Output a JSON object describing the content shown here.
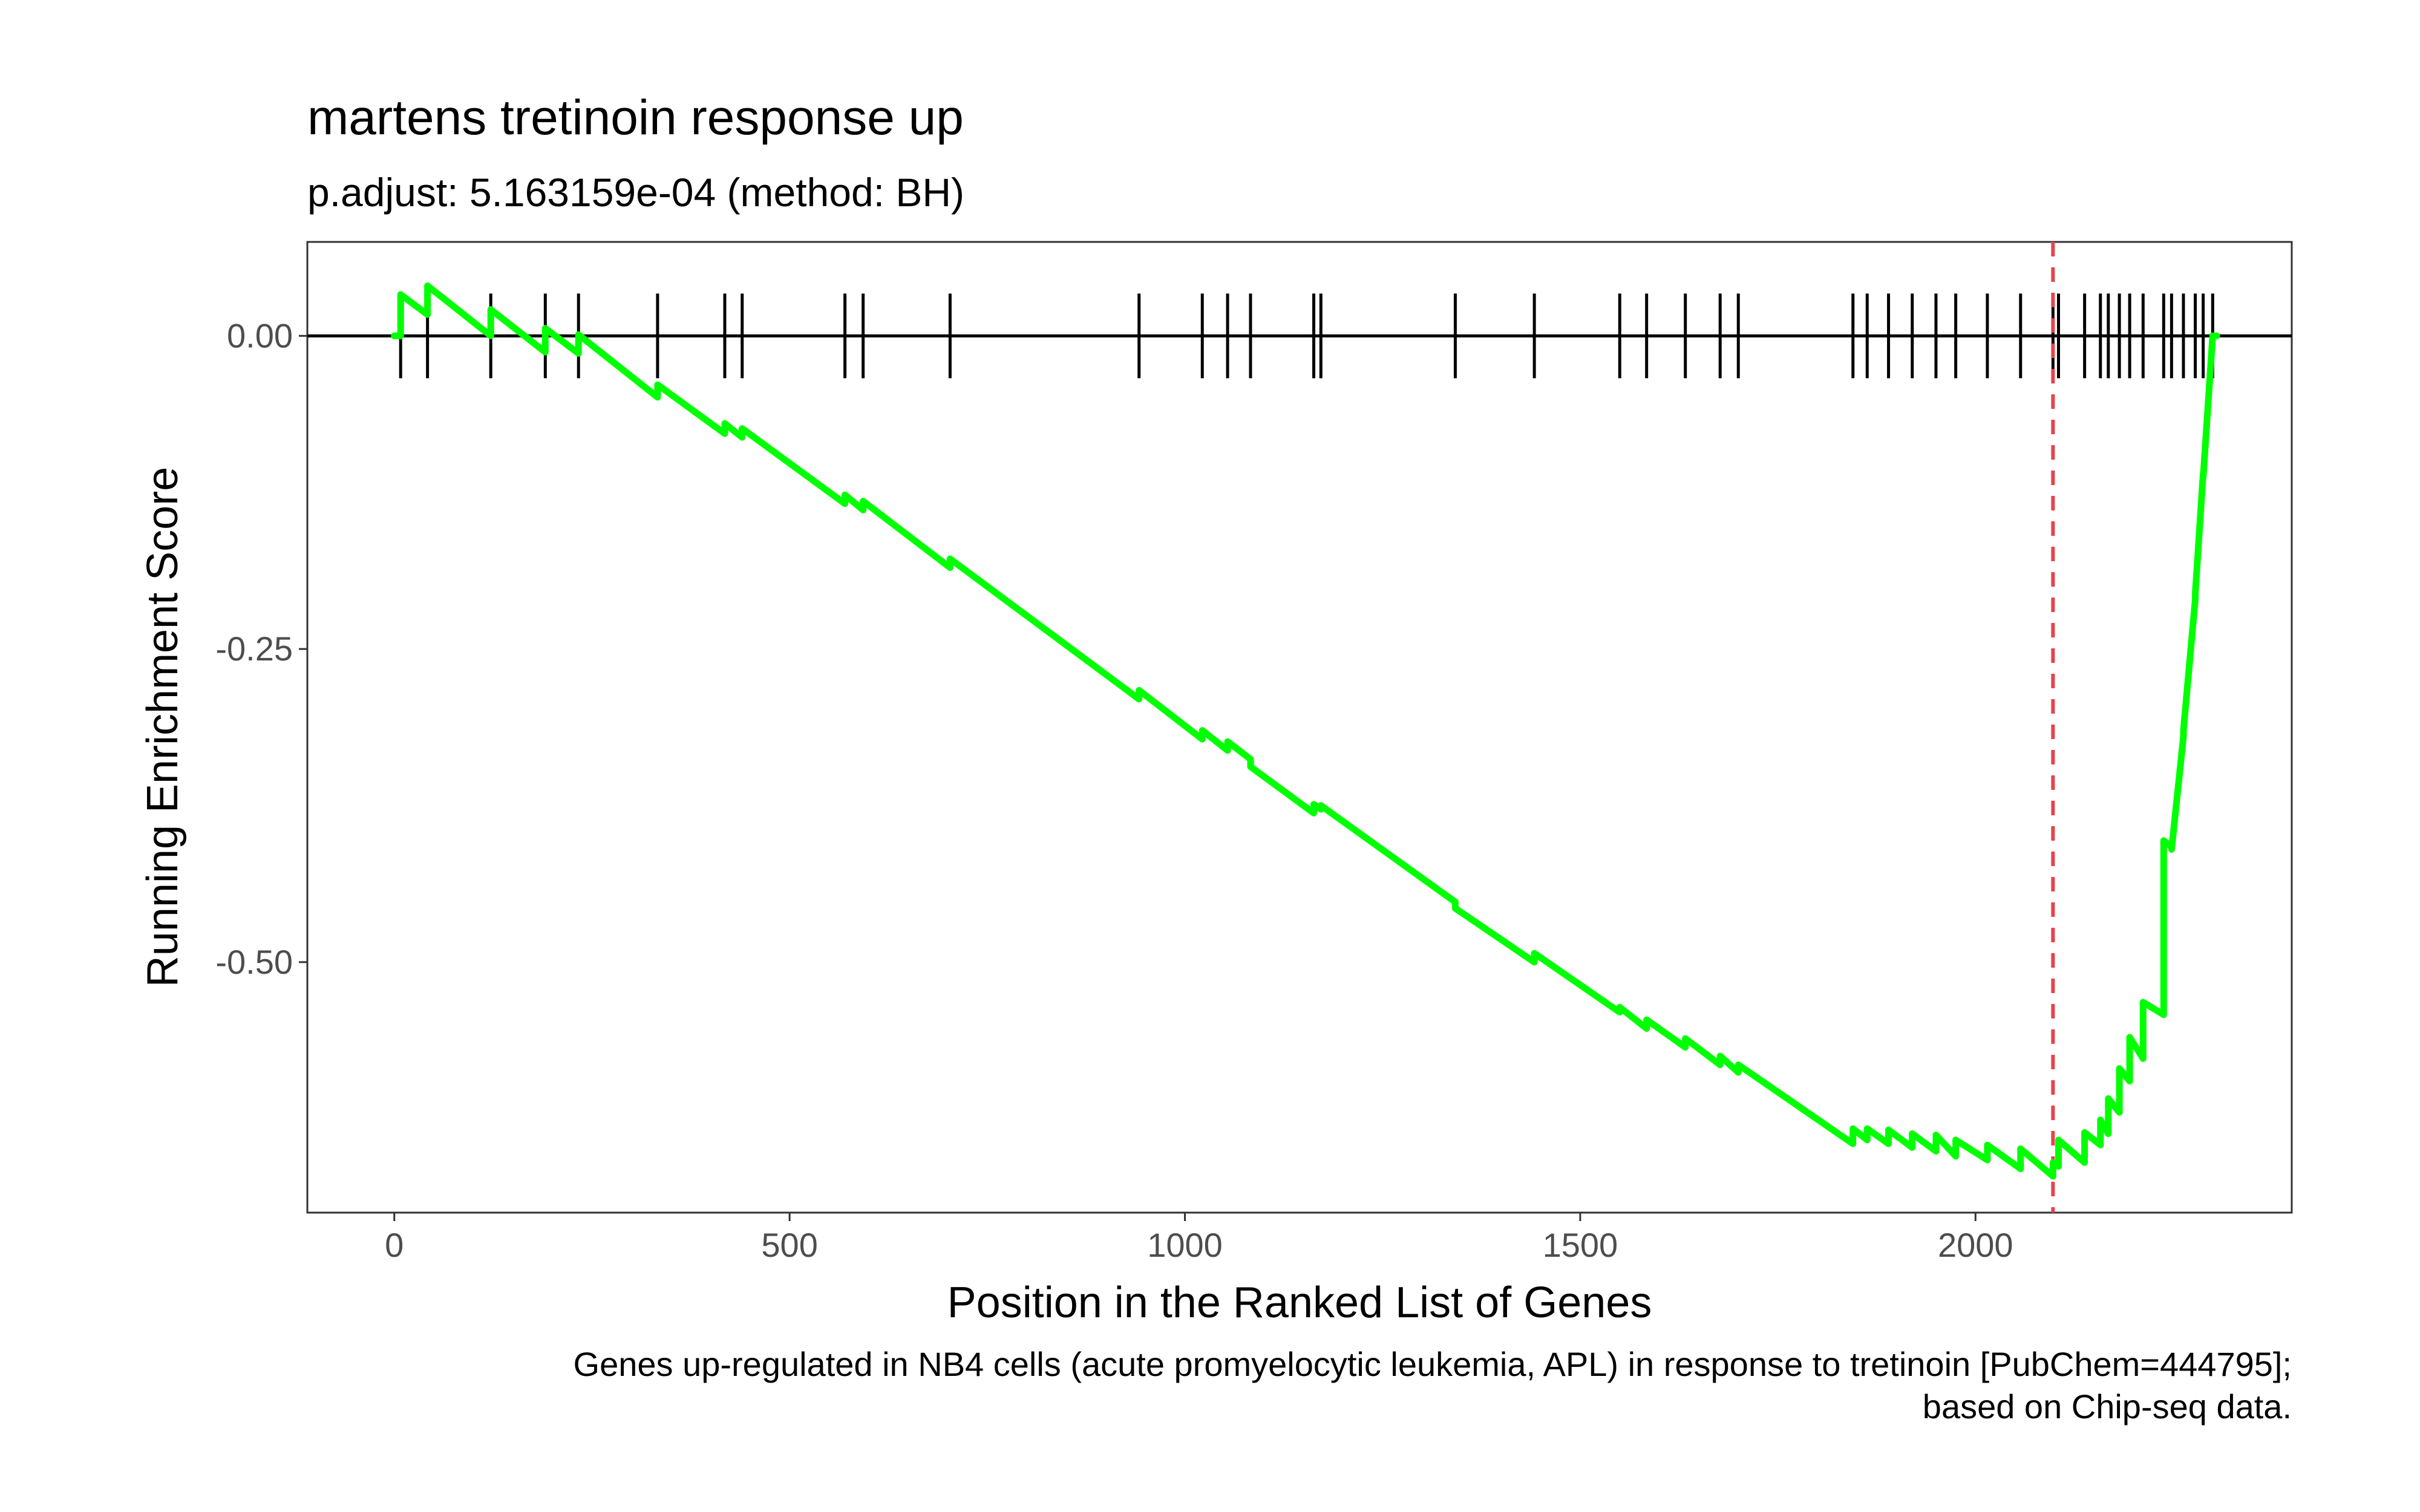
{
  "chart_data": {
    "type": "line",
    "title": "martens tretinoin response up",
    "subtitle": "p.adjust: 5.163159e-04 (method: BH)",
    "xlabel": "Position in the Ranked List of Genes",
    "ylabel": "Running Enrichment Score",
    "caption_lines": [
      "Genes up-regulated in NB4 cells (acute promyelocytic leukemia, APL) in response to tretinoin [PubChem=444795];",
      "based on Chip-seq data."
    ],
    "xlim": [
      -110,
      2400
    ],
    "ylim": [
      -0.7,
      0.075
    ],
    "x_ticks": [
      0,
      500,
      1000,
      1500,
      2000
    ],
    "x_tick_labels": [
      "0",
      "500",
      "1000",
      "1500",
      "2000"
    ],
    "y_ticks": [
      0,
      -0.25,
      -0.5
    ],
    "y_tick_labels": [
      "0.00",
      "-0.25",
      "-0.50"
    ],
    "gene_hits": [
      8,
      42,
      122,
      191,
      233,
      333,
      418,
      440,
      570,
      593,
      703,
      942,
      1022,
      1054,
      1083,
      1163,
      1172,
      1342,
      1442,
      1550,
      1584,
      1633,
      1677,
      1700,
      1845,
      1863,
      1890,
      1920,
      1950,
      1975,
      2015,
      2057,
      2098,
      2105,
      2138,
      2158,
      2168,
      2182,
      2195,
      2212,
      2238,
      2248,
      2263,
      2278,
      2288,
      2300
    ],
    "score_increment": 0.022,
    "final_x": 2305,
    "series": [
      {
        "points": [
          [
            0,
            0
          ],
          [
            8,
            0
          ],
          [
            8,
            0.033
          ],
          [
            42,
            0.017
          ],
          [
            42,
            0.04
          ],
          [
            122,
            0.0
          ],
          [
            122,
            0.021
          ],
          [
            191,
            -0.013
          ],
          [
            191,
            0.006
          ],
          [
            233,
            -0.014
          ],
          [
            233,
            0.001
          ],
          [
            333,
            -0.049
          ],
          [
            333,
            -0.039
          ],
          [
            418,
            -0.078
          ],
          [
            418,
            -0.07
          ],
          [
            440,
            -0.081
          ],
          [
            440,
            -0.074
          ],
          [
            570,
            -0.134
          ],
          [
            570,
            -0.127
          ],
          [
            593,
            -0.139
          ],
          [
            593,
            -0.132
          ],
          [
            703,
            -0.185
          ],
          [
            703,
            -0.178
          ],
          [
            942,
            -0.29
          ],
          [
            942,
            -0.283
          ],
          [
            1022,
            -0.322
          ],
          [
            1022,
            -0.315
          ],
          [
            1054,
            -0.331
          ],
          [
            1054,
            -0.324
          ],
          [
            1083,
            -0.338
          ],
          [
            1083,
            -0.344
          ],
          [
            1163,
            -0.381
          ],
          [
            1163,
            -0.374
          ],
          [
            1172,
            -0.378
          ],
          [
            1172,
            -0.375
          ],
          [
            1342,
            -0.452
          ],
          [
            1342,
            -0.457
          ],
          [
            1442,
            -0.5
          ],
          [
            1442,
            -0.493
          ],
          [
            1550,
            -0.54
          ],
          [
            1550,
            -0.536
          ],
          [
            1584,
            -0.553
          ],
          [
            1584,
            -0.546
          ],
          [
            1633,
            -0.568
          ],
          [
            1633,
            -0.561
          ],
          [
            1677,
            -0.582
          ],
          [
            1677,
            -0.575
          ],
          [
            1700,
            -0.588
          ],
          [
            1700,
            -0.582
          ],
          [
            1845,
            -0.645
          ],
          [
            1845,
            -0.633
          ],
          [
            1863,
            -0.642
          ],
          [
            1863,
            -0.633
          ],
          [
            1890,
            -0.645
          ],
          [
            1890,
            -0.634
          ],
          [
            1920,
            -0.648
          ],
          [
            1920,
            -0.637
          ],
          [
            1950,
            -0.651
          ],
          [
            1950,
            -0.638
          ],
          [
            1975,
            -0.655
          ],
          [
            1975,
            -0.642
          ],
          [
            2015,
            -0.658
          ],
          [
            2015,
            -0.646
          ],
          [
            2057,
            -0.665
          ],
          [
            2057,
            -0.649
          ],
          [
            2098,
            -0.671
          ],
          [
            2098,
            -0.66
          ],
          [
            2105,
            -0.663
          ],
          [
            2105,
            -0.642
          ],
          [
            2138,
            -0.66
          ],
          [
            2138,
            -0.636
          ],
          [
            2158,
            -0.646
          ],
          [
            2158,
            -0.626
          ],
          [
            2168,
            -0.637
          ],
          [
            2168,
            -0.609
          ],
          [
            2182,
            -0.62
          ],
          [
            2182,
            -0.585
          ],
          [
            2195,
            -0.595
          ],
          [
            2195,
            -0.56
          ],
          [
            2212,
            -0.577
          ],
          [
            2212,
            -0.532
          ],
          [
            2238,
            -0.542
          ],
          [
            2238,
            -0.403
          ],
          [
            2248,
            -0.408
          ],
          [
            2248,
            -0.41
          ],
          [
            2263,
            -0.32
          ],
          [
            2263,
            -0.315
          ],
          [
            2278,
            -0.21
          ],
          [
            2278,
            -0.205
          ],
          [
            2288,
            -0.11
          ],
          [
            2288,
            -0.113
          ],
          [
            2300,
            0
          ],
          [
            2305,
            0
          ]
        ]
      }
    ],
    "vline_x": 2098,
    "colors": {
      "line": "#00ff00",
      "vline": "#e8434b",
      "hits": "#000000",
      "zero_line": "#000000",
      "panel_border": "#333333",
      "tick_text": "#4d4d4d"
    },
    "grid": false,
    "legend": "none"
  }
}
